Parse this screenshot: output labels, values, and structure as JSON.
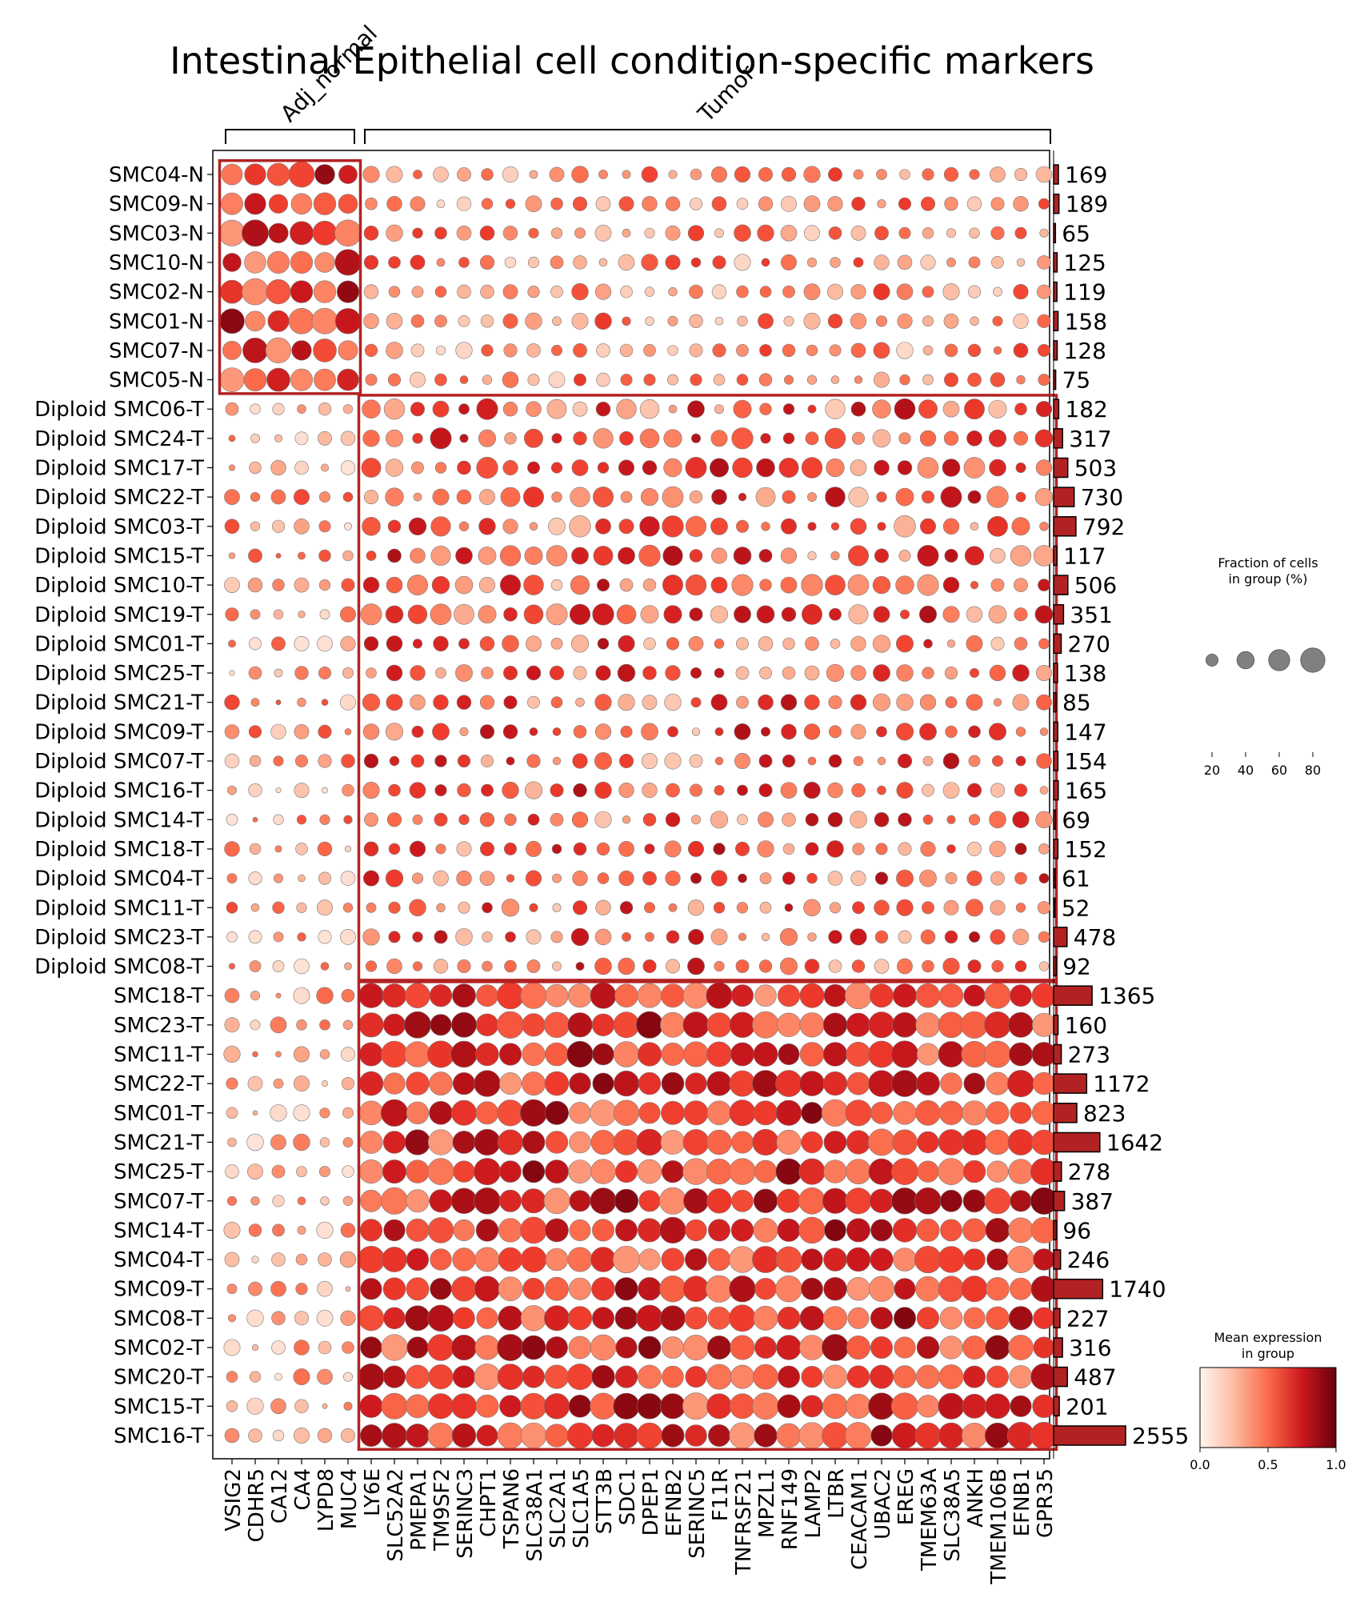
{
  "chart_data": {
    "type": "dotplot",
    "title": "Intestinal Epithelial cell condition-specific markers",
    "var_groups": [
      {
        "label": "Adj_normal",
        "genes": [
          "VSIG2",
          "CDHR5",
          "CA12",
          "CA4",
          "LYPD8",
          "MUC4"
        ]
      },
      {
        "label": "Tumor",
        "genes": [
          "LY6E",
          "SLC52A2",
          "PMEPA1",
          "TM9SF2",
          "SERINC3",
          "CHPT1",
          "TSPAN6",
          "SLC38A1",
          "SLC2A1",
          "SLC1A5",
          "STT3B",
          "SDC1",
          "DPEP1",
          "EFNB2",
          "SERINC5",
          "F11R",
          "TNFRSF21",
          "MPZL1",
          "RNF149",
          "LAMP2",
          "LTBR",
          "CEACAM1",
          "UBAC2",
          "EREG",
          "TMEM63A",
          "SLC38A5",
          "ANKH",
          "TMEM106B",
          "EFNB1",
          "GPR35"
        ]
      }
    ],
    "genes": [
      "VSIG2",
      "CDHR5",
      "CA12",
      "CA4",
      "LYPD8",
      "MUC4",
      "LY6E",
      "SLC52A2",
      "PMEPA1",
      "TM9SF2",
      "SERINC3",
      "CHPT1",
      "TSPAN6",
      "SLC38A1",
      "SLC2A1",
      "SLC1A5",
      "STT3B",
      "SDC1",
      "DPEP1",
      "EFNB2",
      "SERINC5",
      "F11R",
      "TNFRSF21",
      "MPZL1",
      "RNF149",
      "LAMP2",
      "LTBR",
      "CEACAM1",
      "UBAC2",
      "EREG",
      "TMEM63A",
      "SLC38A5",
      "ANKH",
      "TMEM106B",
      "EFNB1",
      "GPR35"
    ],
    "groups": [
      "SMC04-N",
      "SMC09-N",
      "SMC03-N",
      "SMC10-N",
      "SMC02-N",
      "SMC01-N",
      "SMC07-N",
      "SMC05-N",
      "Diploid SMC06-T",
      "Diploid SMC24-T",
      "Diploid SMC17-T",
      "Diploid SMC22-T",
      "Diploid SMC03-T",
      "Diploid SMC15-T",
      "Diploid SMC10-T",
      "Diploid SMC19-T",
      "Diploid SMC01-T",
      "Diploid SMC25-T",
      "Diploid SMC21-T",
      "Diploid SMC09-T",
      "Diploid SMC07-T",
      "Diploid SMC16-T",
      "Diploid SMC14-T",
      "Diploid SMC18-T",
      "Diploid SMC04-T",
      "Diploid SMC11-T",
      "Diploid SMC23-T",
      "Diploid SMC08-T",
      "SMC18-T",
      "SMC23-T",
      "SMC11-T",
      "SMC22-T",
      "SMC01-T",
      "SMC21-T",
      "SMC25-T",
      "SMC07-T",
      "SMC14-T",
      "SMC04-T",
      "SMC09-T",
      "SMC08-T",
      "SMC02-T",
      "SMC20-T",
      "SMC15-T",
      "SMC16-T"
    ],
    "group_counts": [
      169,
      189,
      65,
      125,
      119,
      158,
      128,
      75,
      182,
      317,
      503,
      730,
      792,
      117,
      506,
      351,
      270,
      138,
      85,
      147,
      154,
      165,
      69,
      152,
      61,
      52,
      478,
      92,
      1365,
      160,
      273,
      1172,
      823,
      1642,
      278,
      387,
      96,
      246,
      1740,
      227,
      316,
      487,
      201,
      2555
    ],
    "highlight_boxes": [
      {
        "rows": [
          "SMC04-N",
          "SMC05-N"
        ],
        "genes": [
          "VSIG2",
          "MUC4"
        ]
      },
      {
        "rows": [
          "Diploid SMC06-T",
          "Diploid SMC08-T"
        ],
        "genes": [
          "LY6E",
          "GPR35"
        ]
      },
      {
        "rows": [
          "SMC18-T",
          "SMC16-T"
        ],
        "genes": [
          "LY6E",
          "GPR35"
        ]
      }
    ],
    "size_legend": {
      "title_line1": "Fraction of cells",
      "title_line2": "in group (%)",
      "values": [
        20,
        40,
        60,
        80
      ],
      "labels": [
        "20",
        "40",
        "60",
        "80"
      ]
    },
    "color_legend": {
      "title_line1": "Mean expression",
      "title_line2": "in group",
      "range": [
        0,
        1.0
      ],
      "ticks": [
        "0.0",
        "0.5",
        "1.0"
      ],
      "colormap": "Reds"
    },
    "colors": {
      "box": "#b22222",
      "bar": "#b22222",
      "legend_dot": "#808080"
    }
  }
}
